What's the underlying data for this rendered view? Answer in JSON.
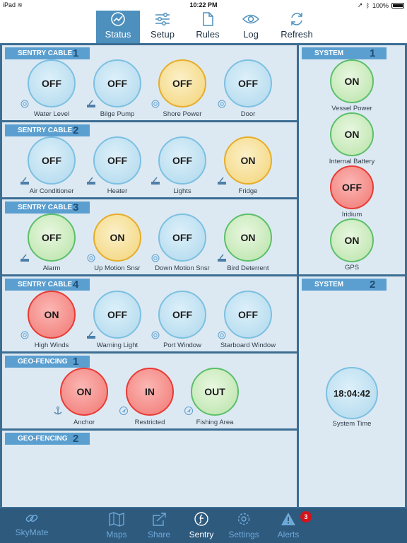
{
  "statusbar": {
    "device": "iPad",
    "time": "10:22 PM",
    "battery": "100%"
  },
  "topnav": {
    "tabs": [
      {
        "label": "Status",
        "icon": "status-gauge-icon"
      },
      {
        "label": "Setup",
        "icon": "sliders-icon"
      },
      {
        "label": "Rules",
        "icon": "document-icon"
      },
      {
        "label": "Log",
        "icon": "eye-icon"
      },
      {
        "label": "Refresh",
        "icon": "refresh-icon"
      }
    ],
    "active": "Status"
  },
  "sentry_cables": [
    {
      "title": "SENTRY CABLE",
      "num": "1",
      "sensors": [
        {
          "state": "OFF",
          "label": "Water Level",
          "icon": "wireless-sensor-icon"
        },
        {
          "state": "OFF",
          "label": "Bilge Pump",
          "icon": "wired-sensor-icon"
        },
        {
          "state": "OFF",
          "label": "Shore Power",
          "icon": "wireless-sensor-icon"
        },
        {
          "state": "OFF",
          "label": "Door",
          "icon": "wireless-sensor-icon"
        }
      ]
    },
    {
      "title": "SENTRY CABLE",
      "num": "2",
      "sensors": [
        {
          "state": "OFF",
          "label": "Air Conditioner",
          "icon": "wired-sensor-icon"
        },
        {
          "state": "OFF",
          "label": "Heater",
          "icon": "wired-sensor-icon"
        },
        {
          "state": "OFF",
          "label": "Lights",
          "icon": "wired-sensor-icon"
        },
        {
          "state": "ON",
          "label": "Fridge",
          "icon": "wired-sensor-icon"
        }
      ]
    },
    {
      "title": "SENTRY CABLE",
      "num": "3",
      "sensors": [
        {
          "state": "OFF",
          "label": "Alarm",
          "icon": "wired-sensor-icon"
        },
        {
          "state": "ON",
          "label": "Up Motion Snsr",
          "icon": "wireless-sensor-icon"
        },
        {
          "state": "OFF",
          "label": "Down Motion Snsr",
          "icon": "wireless-sensor-icon"
        },
        {
          "state": "ON",
          "label": "Bird Deterrent",
          "icon": "wired-sensor-icon"
        }
      ]
    },
    {
      "title": "SENTRY CABLE",
      "num": "4",
      "sensors": [
        {
          "state": "ON",
          "label": "High Winds",
          "icon": "wireless-sensor-icon"
        },
        {
          "state": "OFF",
          "label": "Warning Light",
          "icon": "wired-sensor-icon"
        },
        {
          "state": "OFF",
          "label": "Port Window",
          "icon": "wireless-sensor-icon"
        },
        {
          "state": "OFF",
          "label": "Starboard Window",
          "icon": "wireless-sensor-icon"
        }
      ]
    }
  ],
  "geofencing": [
    {
      "title": "GEO-FENCING",
      "num": "1",
      "zones": [
        {
          "state": "ON",
          "label": "Anchor",
          "icon": "anchor-icon"
        },
        {
          "state": "IN",
          "label": "Restricted",
          "icon": "location-arrow-icon"
        },
        {
          "state": "OUT",
          "label": "Fishing Area",
          "icon": "location-arrow-icon"
        }
      ]
    },
    {
      "title": "GEO-FENCING",
      "num": "2",
      "zones": []
    }
  ],
  "system1": {
    "title": "SYSTEM",
    "num": "1",
    "items": [
      {
        "state": "ON",
        "label": "Vessel Power"
      },
      {
        "state": "ON",
        "label": "Internal Battery"
      },
      {
        "state": "OFF",
        "label": "Iridium"
      },
      {
        "state": "ON",
        "label": "GPS"
      }
    ]
  },
  "system2": {
    "title": "SYSTEM",
    "num": "2",
    "time": "18:04:42",
    "time_label": "System Time"
  },
  "bottombar": {
    "brand": "SkyMate",
    "tabs": [
      {
        "label": "Maps",
        "icon": "map-icon"
      },
      {
        "label": "Share",
        "icon": "share-icon"
      },
      {
        "label": "Sentry",
        "icon": "sentry-icon"
      },
      {
        "label": "Settings",
        "icon": "gear-icon"
      },
      {
        "label": "Alerts",
        "icon": "alert-icon"
      }
    ],
    "active": "Sentry",
    "alerts_badge": "3"
  }
}
